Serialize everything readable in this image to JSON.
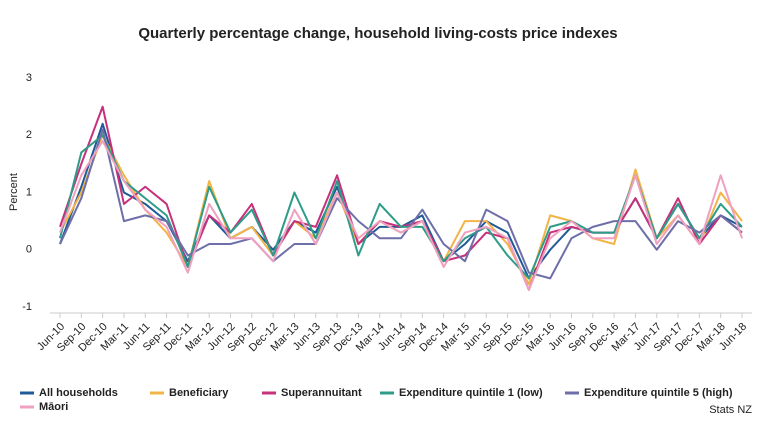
{
  "chart_data": {
    "type": "line",
    "title": "Quarterly percentage change, household living-costs price indexes",
    "y_label": "Percent",
    "source": "Stats NZ",
    "categories": [
      "Jun-10",
      "Sep-10",
      "Dec-10",
      "Mar-11",
      "Jun-11",
      "Sep-11",
      "Dec-11",
      "Mar-12",
      "Jun-12",
      "Sep-12",
      "Dec-12",
      "Mar-13",
      "Jun-13",
      "Sep-13",
      "Dec-13",
      "Mar-14",
      "Jun-14",
      "Sep-14",
      "Dec-14",
      "Mar-15",
      "Jun-15",
      "Sep-15",
      "Dec-15",
      "Mar-16",
      "Jun-16",
      "Sep-16",
      "Dec-16",
      "Mar-17",
      "Jun-17",
      "Sep-17",
      "Dec-17",
      "Mar-18",
      "Jun-18"
    ],
    "series": [
      {
        "name": "All households",
        "color": "#1f5a96",
        "values": [
          0.1,
          1.1,
          2.2,
          1.0,
          0.8,
          0.5,
          -0.2,
          0.6,
          0.2,
          0.4,
          0.0,
          0.5,
          0.3,
          1.1,
          0.1,
          0.4,
          0.4,
          0.6,
          -0.2,
          0.1,
          0.5,
          0.3,
          -0.5,
          0.0,
          0.4,
          0.3,
          0.3,
          0.9,
          0.2,
          0.8,
          0.2,
          0.6,
          0.4
        ]
      },
      {
        "name": "Beneficiary",
        "color": "#f2b447",
        "values": [
          0.3,
          1.0,
          2.0,
          1.3,
          0.7,
          0.3,
          -0.3,
          1.2,
          0.2,
          0.4,
          -0.1,
          0.5,
          0.2,
          1.0,
          0.1,
          0.5,
          0.3,
          0.5,
          -0.2,
          0.5,
          0.5,
          0.1,
          -0.6,
          0.6,
          0.5,
          0.2,
          0.1,
          1.4,
          0.2,
          0.6,
          0.1,
          1.0,
          0.5
        ]
      },
      {
        "name": "Superannuitant",
        "color": "#c7307a",
        "values": [
          0.4,
          1.5,
          2.5,
          0.8,
          1.1,
          0.8,
          -0.3,
          0.6,
          0.3,
          0.8,
          -0.1,
          0.5,
          0.4,
          1.3,
          0.1,
          0.5,
          0.4,
          0.5,
          -0.2,
          -0.1,
          0.3,
          0.2,
          -0.7,
          0.3,
          0.4,
          0.3,
          0.3,
          0.9,
          0.2,
          0.9,
          0.1,
          0.6,
          0.3
        ]
      },
      {
        "name": "Expenditure quintile 1 (low)",
        "color": "#2e9c88",
        "values": [
          0.2,
          1.7,
          2.0,
          1.2,
          0.9,
          0.6,
          -0.3,
          1.1,
          0.3,
          0.7,
          -0.1,
          1.0,
          0.2,
          1.2,
          -0.1,
          0.8,
          0.4,
          0.4,
          -0.2,
          0.2,
          0.4,
          -0.1,
          -0.5,
          0.4,
          0.5,
          0.3,
          0.3,
          1.3,
          0.2,
          0.8,
          0.2,
          0.8,
          0.4
        ]
      },
      {
        "name": "Expenditure quintile 5 (high)",
        "color": "#6e6fa8",
        "values": [
          0.1,
          0.9,
          2.1,
          0.5,
          0.6,
          0.5,
          -0.1,
          0.1,
          0.1,
          0.2,
          -0.2,
          0.1,
          0.1,
          0.9,
          0.5,
          0.2,
          0.2,
          0.7,
          0.1,
          -0.2,
          0.7,
          0.5,
          -0.4,
          -0.5,
          0.2,
          0.4,
          0.5,
          0.5,
          0.0,
          0.5,
          0.3,
          0.6,
          0.3
        ]
      },
      {
        "name": "Māori",
        "color": "#f0a0c0",
        "values": [
          0.3,
          1.3,
          1.9,
          1.2,
          0.7,
          0.4,
          -0.4,
          0.8,
          0.2,
          0.2,
          -0.2,
          0.7,
          0.1,
          1.0,
          0.2,
          0.5,
          0.3,
          0.5,
          -0.3,
          0.3,
          0.4,
          0.2,
          -0.7,
          0.2,
          0.5,
          0.2,
          0.2,
          1.3,
          0.1,
          0.6,
          0.1,
          1.3,
          0.2
        ]
      }
    ],
    "ylim": [
      -1,
      3
    ],
    "yticks": [
      3,
      2,
      1,
      0,
      -1
    ],
    "grid": false,
    "legend": "bottom"
  }
}
